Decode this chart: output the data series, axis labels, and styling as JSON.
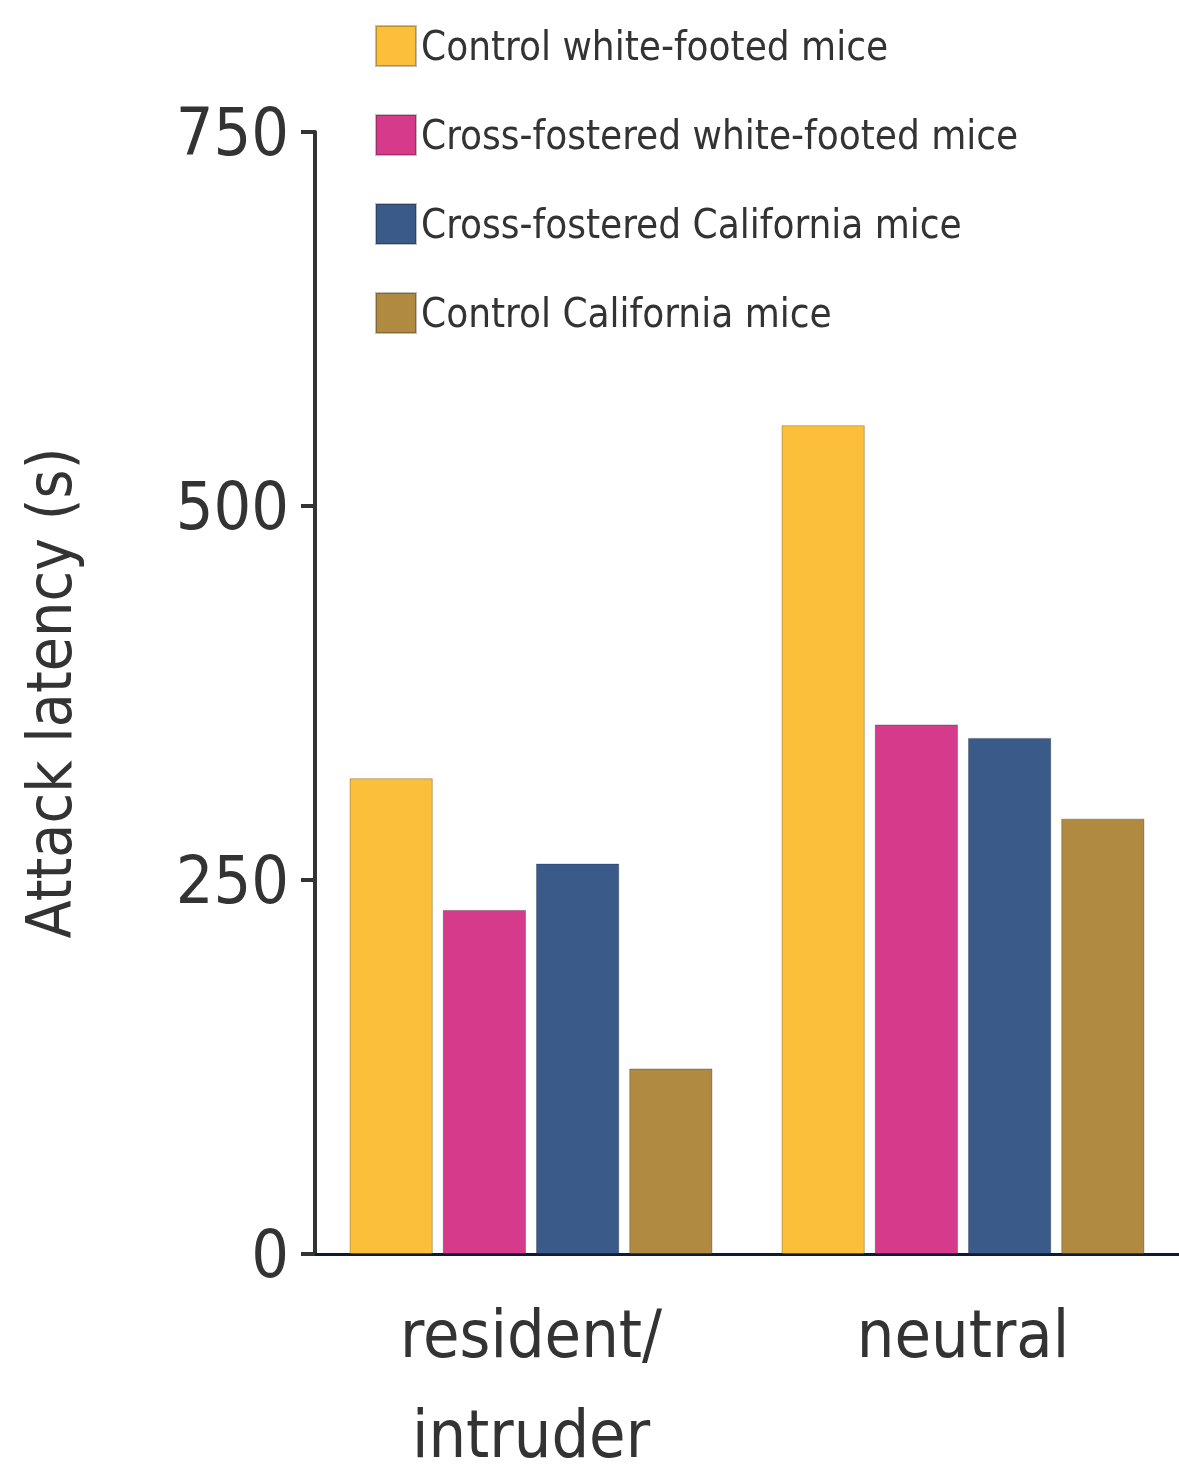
{
  "chart_data": {
    "type": "bar",
    "ylabel": "Attack latency (s)",
    "categories": [
      "resident/\nintruder",
      "neutral"
    ],
    "series": [
      {
        "name": "Control white-footed mice",
        "color": "#fbbf3a",
        "values": [
          318,
          554
        ]
      },
      {
        "name": "Cross-fostered white-footed mice",
        "color": "#d63a8a",
        "values": [
          230,
          354
        ]
      },
      {
        "name": "Cross-fostered California mice",
        "color": "#3a5a8a",
        "values": [
          261,
          345
        ]
      },
      {
        "name": "Control California mice",
        "color": "#b08a40",
        "values": [
          124,
          291
        ]
      }
    ],
    "ylim": [
      0,
      750
    ],
    "yticks": [
      0,
      250,
      500,
      750
    ],
    "grid": false,
    "legend": "top left"
  }
}
